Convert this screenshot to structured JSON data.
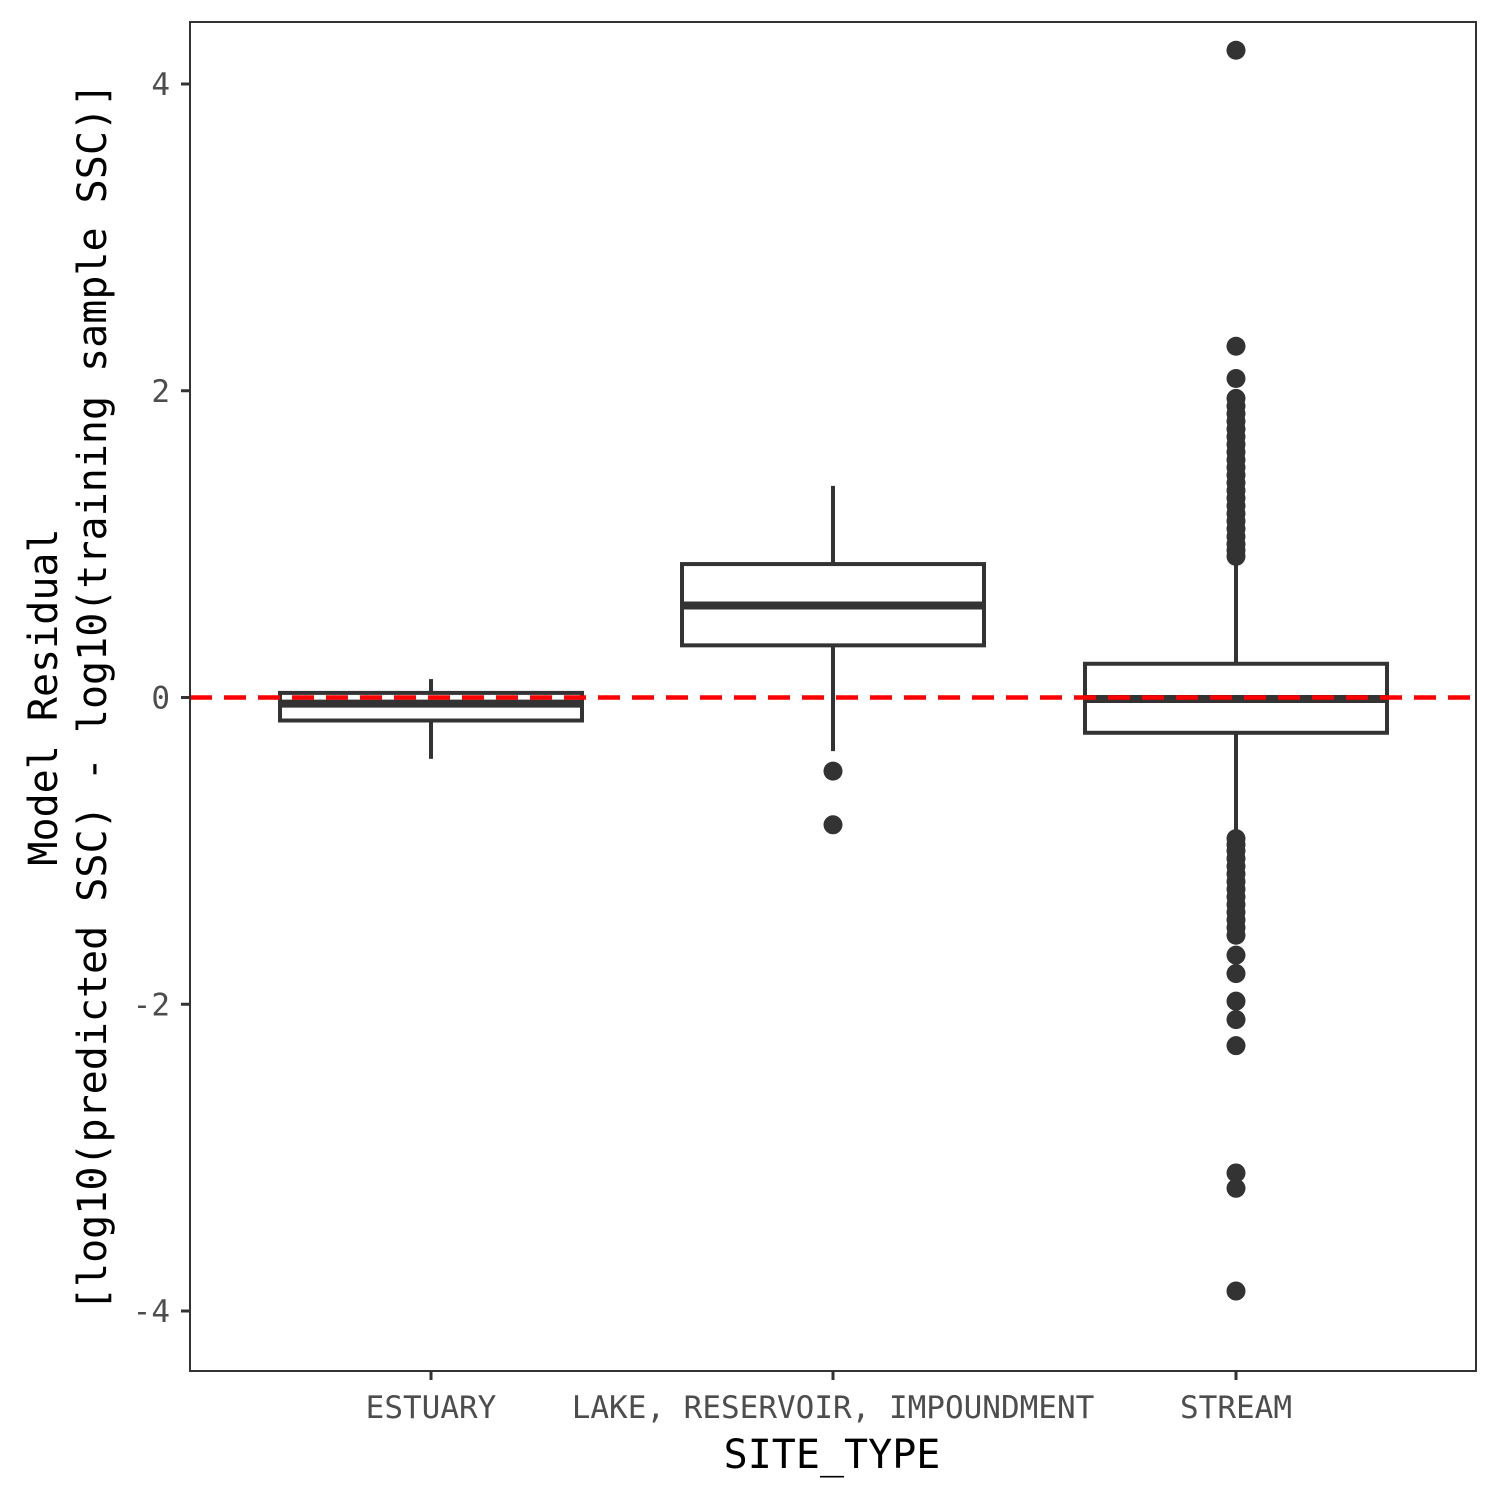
{
  "chart_data": {
    "type": "box",
    "title": "",
    "xlabel": "SITE_TYPE",
    "ylabel_lines": [
      "Model Residual",
      "[log10(predicted SSC) - log10(training sample SSC)]"
    ],
    "ylim": [
      -4.4,
      4.4
    ],
    "y_ticks": [
      -4,
      -2,
      0,
      2,
      4
    ],
    "y_tick_labels": [
      "-4",
      "-2",
      "0",
      "2",
      "4"
    ],
    "grid": false,
    "reference_line": {
      "y": 0,
      "style": "dashed",
      "color": "#ff0000"
    },
    "colors": {
      "box": "#333333",
      "panel_border": "#333333",
      "reference": "#ff0000"
    },
    "categories": [
      "ESTUARY",
      "LAKE, RESERVOIR, IMPOUNDMENT",
      "STREAM"
    ],
    "boxes": [
      {
        "category": "ESTUARY",
        "whisker_low": -0.4,
        "q1": -0.15,
        "median": -0.04,
        "q3": 0.03,
        "whisker_high": 0.12,
        "outliers": []
      },
      {
        "category": "LAKE, RESERVOIR, IMPOUNDMENT",
        "whisker_low": -0.35,
        "q1": 0.34,
        "median": 0.6,
        "q3": 0.87,
        "whisker_high": 1.38,
        "outliers": [
          -0.48,
          -0.83
        ]
      },
      {
        "category": "STREAM",
        "whisker_low": -0.9,
        "q1": -0.23,
        "median": -0.01,
        "q3": 0.22,
        "whisker_high": 0.88,
        "outliers": [
          4.22,
          2.29,
          2.08,
          1.95,
          1.9,
          1.85,
          1.8,
          1.75,
          1.7,
          1.65,
          1.6,
          1.55,
          1.5,
          1.45,
          1.4,
          1.35,
          1.3,
          1.25,
          1.2,
          1.15,
          1.1,
          1.05,
          1.0,
          0.96,
          0.92,
          -0.92,
          -0.96,
          -1.0,
          -1.05,
          -1.1,
          -1.15,
          -1.2,
          -1.25,
          -1.3,
          -1.35,
          -1.4,
          -1.45,
          -1.5,
          -1.55,
          -1.68,
          -1.8,
          -1.98,
          -2.1,
          -2.27,
          -3.1,
          -3.2,
          -3.87
        ]
      }
    ]
  }
}
